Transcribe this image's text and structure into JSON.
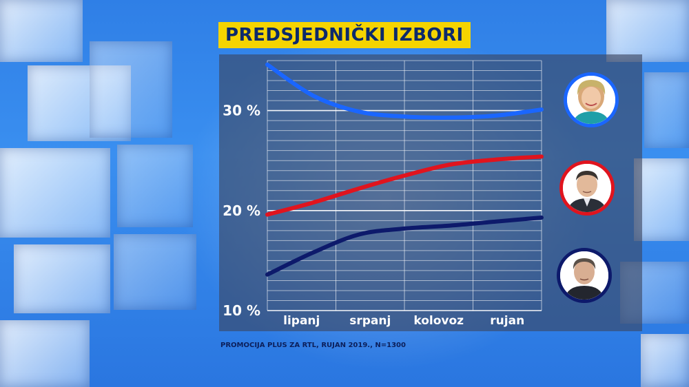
{
  "title": "PREDSJEDNIČKI IZBORI",
  "source": "PROMOCIJA PLUS ZA RTL, RUJAN 2019., N=1300",
  "chart_data": {
    "type": "line",
    "title": "PREDSJEDNIČKI IZBORI",
    "xlabel": "",
    "ylabel": "",
    "categories": [
      "lipanj",
      "srpanj",
      "kolovoz",
      "rujan"
    ],
    "x_range": [
      "lipanj",
      "rujan"
    ],
    "ylim": [
      10,
      35
    ],
    "yticks": [
      {
        "value": 10,
        "label": "10 %"
      },
      {
        "value": 20,
        "label": "20 %"
      },
      {
        "value": 30,
        "label": "30 %"
      }
    ],
    "grid": true,
    "legend": "candidate portraits at right end of each line",
    "series": [
      {
        "color": "#1a66ff",
        "icon": "candidate-portrait-1",
        "points": [
          [
            0,
            34.6
          ],
          [
            0.5,
            31.5
          ],
          [
            1.0,
            29.9
          ],
          [
            1.5,
            29.4
          ],
          [
            2.0,
            29.3
          ],
          [
            2.5,
            29.5
          ],
          [
            3.0,
            30.1
          ]
        ]
      },
      {
        "color": "#e0141e",
        "icon": "candidate-portrait-2",
        "points": [
          [
            0,
            19.6
          ],
          [
            0.5,
            20.8
          ],
          [
            1.0,
            22.2
          ],
          [
            1.5,
            23.5
          ],
          [
            2.0,
            24.6
          ],
          [
            2.5,
            25.1
          ],
          [
            3.0,
            25.4
          ]
        ]
      },
      {
        "color": "#0d1a6b",
        "icon": "candidate-portrait-3",
        "points": [
          [
            0,
            13.6
          ],
          [
            0.5,
            15.8
          ],
          [
            1.0,
            17.6
          ],
          [
            1.5,
            18.2
          ],
          [
            2.0,
            18.5
          ],
          [
            2.5,
            18.9
          ],
          [
            3.0,
            19.3
          ]
        ]
      }
    ]
  }
}
